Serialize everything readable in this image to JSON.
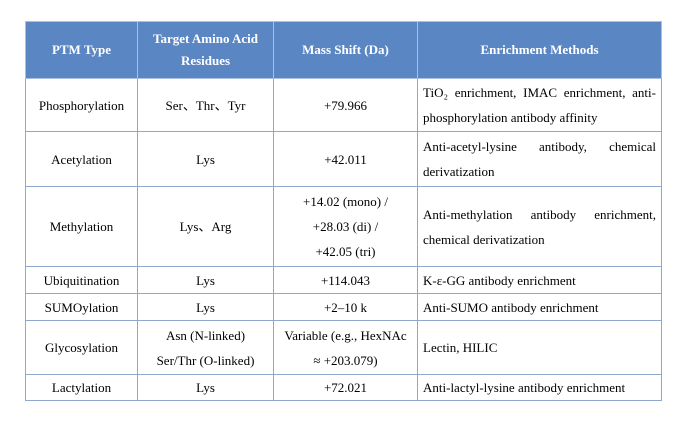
{
  "table": {
    "header": [
      "PTM Type",
      "Target Amino Acid Residues",
      "Mass Shift (Da)",
      "Enrichment Methods"
    ],
    "rows": [
      [
        "Phosphorylation",
        "Ser、Thr、Tyr",
        "+79.966",
        "TiO₂ enrichment, IMAC enrichment, anti-phosphorylation antibody affinity"
      ],
      [
        "Acetylation",
        "Lys",
        "+42.011",
        "Anti-acetyl-lysine antibody, chemical derivatization"
      ],
      [
        "Methylation",
        "Lys、Arg",
        [
          "+14.02 (mono) /",
          "+28.03 (di) /",
          "+42.05 (tri)"
        ],
        "Anti-methylation antibody enrichment, chemical derivatization"
      ],
      [
        "Ubiquitination",
        "Lys",
        "+114.043",
        "K-ε-GG antibody enrichment"
      ],
      [
        "SUMOylation",
        "Lys",
        "+2–10 k",
        "Anti-SUMO antibody enrichment"
      ],
      [
        "Glycosylation",
        [
          "Asn (N-linked)",
          "Ser/Thr (O-linked)"
        ],
        [
          "Variable (e.g., HexNAc",
          "≈ +203.079)"
        ],
        "Lectin, HILIC"
      ],
      [
        "Lactylation",
        "Lys",
        "+72.021",
        "Anti-lactyl-lysine antibody enrichment"
      ]
    ]
  }
}
